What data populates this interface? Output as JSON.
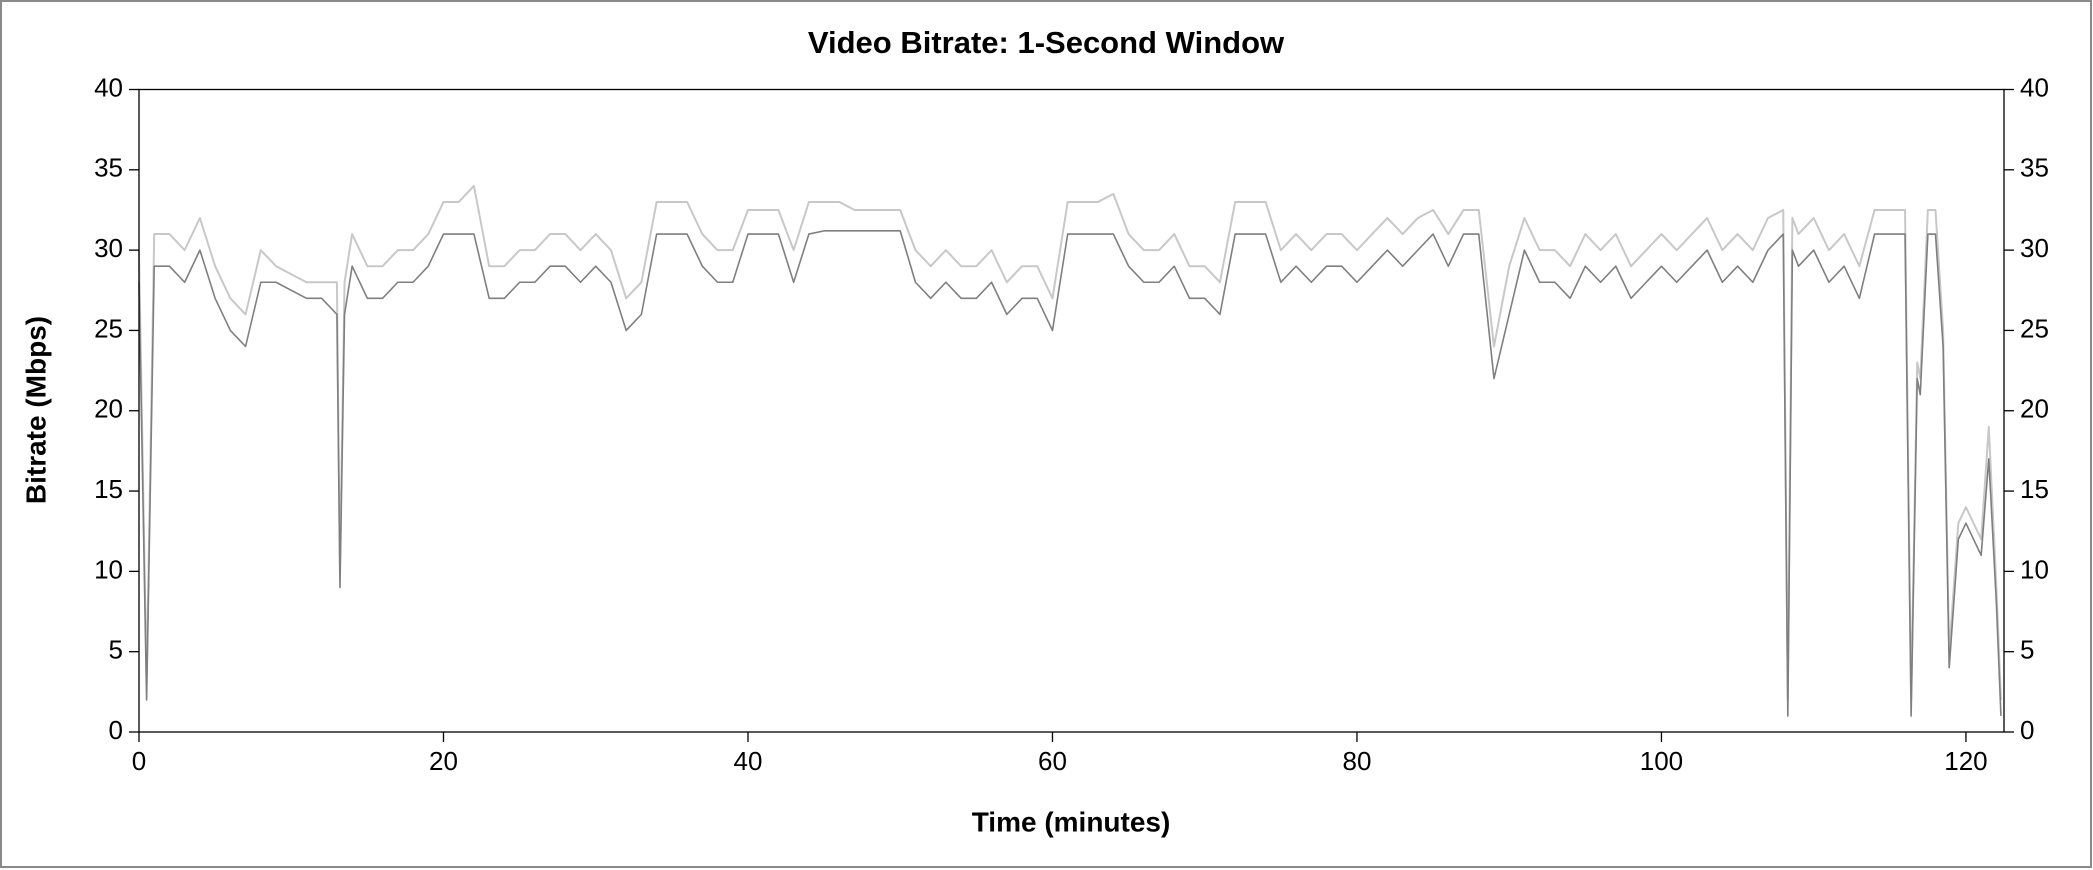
{
  "chart_data": {
    "type": "line",
    "title": "Video Bitrate: 1-Second Window",
    "x_label": "Time (minutes)",
    "y_label": "Bitrate (Mbps)",
    "xlim": [
      0,
      122.5
    ],
    "ylim": [
      0,
      40
    ],
    "xticks": [
      0,
      20,
      40,
      60,
      80,
      100,
      120
    ],
    "yticks": [
      0,
      5,
      10,
      15,
      20,
      25,
      30,
      35,
      40
    ],
    "y2ticks": [
      0,
      5,
      10,
      15,
      20,
      25,
      30,
      35,
      40
    ],
    "y2lim": [
      0,
      40
    ],
    "grid": false,
    "x": [
      0,
      0.5,
      1,
      2,
      3,
      4,
      5,
      6,
      7,
      8,
      9,
      10,
      11,
      12,
      13,
      13.2,
      13.5,
      14,
      15,
      16,
      17,
      18,
      19,
      20,
      21,
      22,
      23,
      24,
      25,
      26,
      27,
      28,
      29,
      30,
      31,
      32,
      33,
      34,
      35,
      36,
      37,
      38,
      39,
      40,
      41,
      42,
      43,
      44,
      45,
      46,
      47,
      48,
      49,
      50,
      51,
      52,
      53,
      54,
      55,
      56,
      57,
      58,
      59,
      60,
      61,
      62,
      63,
      64,
      65,
      66,
      67,
      68,
      69,
      70,
      71,
      72,
      73,
      74,
      75,
      76,
      77,
      78,
      79,
      80,
      81,
      82,
      83,
      84,
      85,
      86,
      87,
      88,
      89,
      90,
      91,
      92,
      93,
      94,
      95,
      96,
      97,
      98,
      99,
      100,
      101,
      102,
      103,
      104,
      105,
      106,
      107,
      108,
      108.3,
      108.6,
      109,
      110,
      111,
      112,
      113,
      114,
      115,
      116,
      116.4,
      116.8,
      117,
      117.5,
      118,
      118.5,
      118.9,
      119.5,
      120,
      121,
      121.5,
      122,
      122.3
    ],
    "series": [
      {
        "color": "#c8c8c8",
        "values": [
          30,
          3,
          31,
          31,
          30,
          32,
          29,
          27,
          26,
          30,
          29,
          28.5,
          28,
          28,
          28,
          10,
          28,
          31,
          29,
          29,
          30,
          30,
          31,
          33,
          33,
          34,
          29,
          29,
          30,
          30,
          31,
          31,
          30,
          31,
          30,
          27,
          28,
          33,
          33,
          33,
          31,
          30,
          30,
          32.5,
          32.5,
          32.5,
          30,
          33,
          33,
          33,
          32.5,
          32.5,
          32.5,
          32.5,
          30,
          29,
          30,
          29,
          29,
          30,
          28,
          29,
          29,
          27,
          33,
          33,
          33,
          33.5,
          31,
          30,
          30,
          31,
          29,
          29,
          28,
          33,
          33,
          33,
          30,
          31,
          30,
          31,
          31,
          30,
          31,
          32,
          31,
          32,
          32.5,
          31,
          32.5,
          32.5,
          24,
          29,
          32,
          30,
          30,
          29,
          31,
          30,
          31,
          29,
          30,
          31,
          30,
          31,
          32,
          30,
          31,
          30,
          32,
          32.5,
          2,
          32,
          31,
          32,
          30,
          31,
          29,
          32.5,
          32.5,
          32.5,
          2,
          23,
          22,
          32.5,
          32.5,
          25,
          5,
          13,
          14,
          12,
          19,
          9,
          2
        ]
      },
      {
        "color": "#7f7f7f",
        "values": [
          28,
          2,
          29,
          29,
          28,
          30,
          27,
          25,
          24,
          28,
          28,
          27.5,
          27,
          27,
          26,
          9,
          26,
          29,
          27,
          27,
          28,
          28,
          29,
          31,
          31,
          31,
          27,
          27,
          28,
          28,
          29,
          29,
          28,
          29,
          28,
          25,
          26,
          31,
          31,
          31,
          29,
          28,
          28,
          31,
          31,
          31,
          28,
          31,
          31.2,
          31.2,
          31.2,
          31.2,
          31.2,
          31.2,
          28,
          27,
          28,
          27,
          27,
          28,
          26,
          27,
          27,
          25,
          31,
          31,
          31,
          31,
          29,
          28,
          28,
          29,
          27,
          27,
          26,
          31,
          31,
          31,
          28,
          29,
          28,
          29,
          29,
          28,
          29,
          30,
          29,
          30,
          31,
          29,
          31,
          31,
          22,
          26,
          30,
          28,
          28,
          27,
          29,
          28,
          29,
          27,
          28,
          29,
          28,
          29,
          30,
          28,
          29,
          28,
          30,
          31,
          1,
          30,
          29,
          30,
          28,
          29,
          27,
          31,
          31,
          31,
          1,
          22,
          21,
          31,
          31,
          24,
          4,
          12,
          13,
          11,
          17,
          8,
          1
        ]
      }
    ]
  }
}
